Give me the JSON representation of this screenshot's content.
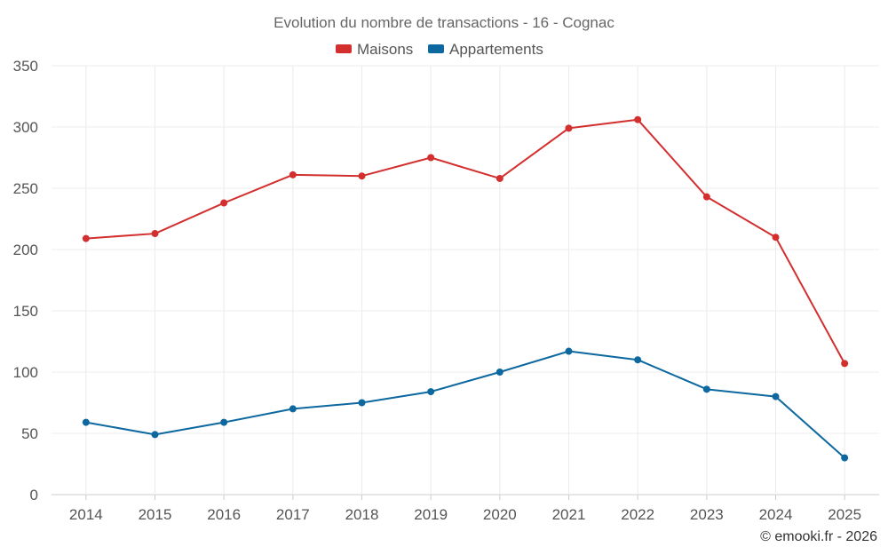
{
  "chart_data": {
    "type": "line",
    "title": "Evolution du nombre de transactions - 16 - Cognac",
    "categories": [
      "2014",
      "2015",
      "2016",
      "2017",
      "2018",
      "2019",
      "2020",
      "2021",
      "2022",
      "2023",
      "2024",
      "2025"
    ],
    "series": [
      {
        "name": "Maisons",
        "color": "#d32f2f",
        "values": [
          209,
          213,
          238,
          261,
          260,
          275,
          258,
          299,
          306,
          243,
          210,
          107
        ]
      },
      {
        "name": "Appartements",
        "color": "#0d68a0",
        "values": [
          59,
          49,
          59,
          70,
          75,
          84,
          100,
          117,
          110,
          86,
          80,
          30
        ]
      }
    ],
    "ylim": [
      0,
      350
    ],
    "yticks": [
      0,
      50,
      100,
      150,
      200,
      250,
      300,
      350
    ],
    "grid": true,
    "legend_position": "top-center",
    "xlabel": "",
    "ylabel": ""
  },
  "credit": "© emooki.fr - 2026"
}
